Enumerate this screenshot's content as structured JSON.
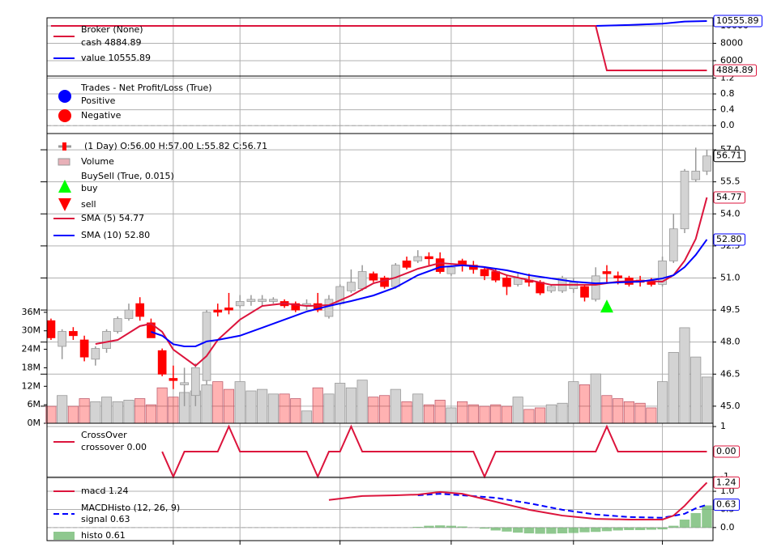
{
  "chart_data": [
    {
      "type": "line",
      "title": "Broker (None)",
      "xlim": [
        -0.36,
        59.55
      ],
      "ylim": [
        4230,
        10930
      ],
      "yticks": [
        6000,
        8000,
        10000
      ],
      "grid": true,
      "series": [
        {
          "name": "cash 4884.89",
          "color": "#dc143c",
          "x": [
            0,
            49,
            50,
            59
          ],
          "values": [
            10000,
            10000,
            4884.89,
            4884.89
          ],
          "tag_label": "4884.89"
        },
        {
          "name": "value 10555.89",
          "color": "#0000ff",
          "x": [
            0,
            49,
            52,
            55,
            57,
            59
          ],
          "values": [
            10000,
            10000,
            10100,
            10250,
            10500,
            10555.89
          ],
          "tag_label": "10555.89"
        }
      ]
    },
    {
      "type": "scatter",
      "title": "Trades - Net Profit/Loss (True)",
      "xlim": [
        -0.36,
        59.55
      ],
      "ylim": [
        -0.2,
        1.25
      ],
      "yticks": [
        {
          "value": 0,
          "label": "0.0"
        },
        0.4,
        0.8,
        1.2
      ],
      "grid": true,
      "zero_line": true,
      "series": [
        {
          "name": "Positive",
          "color": "#0000ff",
          "x": [],
          "values": []
        },
        {
          "name": "Negative",
          "color": "#ff0000",
          "x": [],
          "values": []
        }
      ]
    },
    {
      "type": "candlestick",
      "title": "(1 Day) O:56.00 H:57.00 L:55.82 C:56.71",
      "xlim": [
        -0.36,
        59.55
      ],
      "ylim": [
        44.2,
        57.76
      ],
      "yticks": [
        {
          "value": 45,
          "label": "45.0"
        },
        46.5,
        {
          "value": 48,
          "label": "48.0"
        },
        49.5,
        {
          "value": 51,
          "label": "51.0"
        },
        52.5,
        {
          "value": 54,
          "label": "54.0"
        },
        55.5,
        {
          "value": 57,
          "label": "57.0"
        }
      ],
      "grid": true,
      "up_color": "#d3d3d3",
      "down_color": "#ff0000",
      "tag_label": "56.71",
      "xgrid": [
        11,
        17,
        26,
        36,
        47,
        55
      ],
      "open": [
        49.0,
        47.8,
        48.5,
        48.1,
        47.2,
        47.7,
        48.5,
        49.1,
        49.8,
        48.9,
        47.6,
        46.3,
        46.0,
        45.5,
        46.2,
        49.5,
        49.6,
        49.7,
        49.9,
        49.9,
        49.9,
        49.9,
        49.8,
        49.7,
        49.8,
        49.2,
        49.8,
        50.4,
        50.5,
        51.2,
        51.0,
        50.6,
        51.8,
        51.8,
        52.0,
        51.9,
        51.2,
        51.8,
        51.6,
        51.4,
        51.3,
        51.0,
        50.7,
        50.9,
        50.8,
        50.4,
        50.4,
        50.5,
        50.6,
        50.0,
        51.3,
        51.1,
        51.0,
        50.9,
        50.8,
        50.7,
        51.8,
        53.3,
        55.6,
        56.0
      ],
      "high": [
        49.1,
        48.6,
        48.7,
        48.3,
        47.8,
        48.6,
        49.2,
        49.8,
        50.1,
        49.1,
        47.7,
        46.9,
        46.8,
        47.0,
        49.5,
        49.8,
        50.3,
        50.2,
        50.2,
        50.2,
        50.1,
        50.0,
        49.9,
        50.0,
        50.3,
        50.2,
        50.7,
        51.4,
        51.6,
        51.3,
        51.1,
        51.7,
        52.0,
        52.3,
        52.2,
        52.2,
        51.6,
        51.9,
        51.8,
        51.5,
        51.4,
        51.1,
        51.2,
        51.2,
        50.9,
        50.7,
        51.1,
        51.0,
        50.7,
        51.5,
        51.6,
        51.3,
        51.1,
        51.1,
        51.0,
        52.0,
        54.0,
        56.1,
        57.1,
        57.0
      ],
      "low": [
        48.1,
        47.2,
        48.1,
        47.1,
        46.9,
        47.5,
        48.4,
        49.0,
        49.0,
        48.2,
        46.4,
        45.8,
        45.0,
        45.0,
        46.0,
        49.2,
        49.3,
        49.6,
        49.7,
        49.7,
        49.8,
        49.6,
        49.4,
        49.5,
        49.4,
        49.1,
        49.7,
        50.3,
        50.4,
        50.8,
        50.5,
        50.5,
        51.4,
        51.7,
        51.6,
        51.2,
        51.1,
        51.3,
        51.2,
        50.9,
        50.8,
        50.2,
        50.6,
        50.6,
        50.2,
        50.3,
        50.3,
        50.3,
        49.9,
        49.9,
        50.8,
        50.7,
        50.6,
        50.6,
        50.6,
        50.6,
        51.7,
        53.1,
        55.5,
        55.82
      ],
      "close": [
        48.2,
        48.5,
        48.3,
        47.3,
        47.7,
        48.5,
        49.1,
        49.5,
        49.2,
        48.2,
        46.5,
        46.2,
        46.1,
        46.8,
        49.4,
        49.4,
        49.5,
        49.9,
        50.0,
        50.0,
        50.0,
        49.7,
        49.5,
        49.8,
        49.5,
        50.0,
        50.6,
        50.8,
        51.3,
        50.9,
        50.6,
        51.6,
        51.5,
        52.0,
        51.9,
        51.3,
        51.5,
        51.6,
        51.4,
        51.1,
        50.9,
        50.6,
        51.0,
        50.8,
        50.3,
        50.6,
        51.0,
        50.8,
        50.1,
        51.1,
        51.2,
        51.0,
        50.7,
        50.8,
        50.7,
        51.8,
        53.3,
        56.0,
        56.0,
        56.71
      ],
      "volume": {
        "name": "Volume",
        "ylim": [
          0,
          94
        ],
        "yticks": [
          {
            "value": 0,
            "label": "0M"
          },
          {
            "value": 6,
            "label": "6M"
          },
          {
            "value": 12,
            "label": "12M"
          },
          {
            "value": 18,
            "label": "18M"
          },
          {
            "value": 24,
            "label": "24M"
          },
          {
            "value": 30,
            "label": "30M"
          },
          {
            "value": 36,
            "label": "36M"
          }
        ],
        "values": [
          5.5,
          9,
          5.5,
          8,
          7,
          8.5,
          7,
          7.5,
          8,
          6,
          11.5,
          8.5,
          10,
          10.5,
          12.5,
          13.5,
          11,
          13.5,
          10.5,
          11,
          9.5,
          9.5,
          8,
          4,
          11.5,
          9.5,
          13,
          11.5,
          14,
          8.5,
          9,
          11,
          7,
          9.5,
          6,
          7.5,
          5,
          7,
          6,
          5.5,
          6,
          5.5,
          8.5,
          4.5,
          5,
          6,
          6.5,
          13.5,
          12.5,
          16,
          9,
          8,
          7,
          6.5,
          5,
          13.5,
          23,
          31,
          21.5,
          15
        ]
      },
      "buysell": {
        "title": "BuySell (True, 0.015)",
        "buy": {
          "name": "buy",
          "color": "#00ff00",
          "x": [
            50
          ],
          "values": [
            49.65
          ]
        },
        "sell": {
          "name": "sell",
          "color": "#ff0000",
          "x": [],
          "values": []
        }
      },
      "series": [
        {
          "name": "SMA (5) 54.77",
          "color": "#dc143c",
          "tag_label": "54.77",
          "x": [
            4,
            6,
            8,
            9,
            10,
            11,
            13,
            14,
            15,
            17,
            19,
            21,
            23,
            25,
            27,
            29,
            31,
            33,
            35,
            37,
            39,
            41,
            43,
            45,
            47,
            49,
            51,
            53,
            55,
            56,
            57,
            58,
            59
          ],
          "values": [
            47.91,
            48.1,
            48.75,
            48.86,
            48.48,
            47.65,
            46.89,
            47.35,
            48.1,
            49.05,
            49.69,
            49.81,
            49.69,
            49.73,
            50.18,
            50.75,
            51.02,
            51.43,
            51.7,
            51.62,
            51.51,
            51.13,
            50.9,
            50.68,
            50.68,
            50.68,
            50.83,
            50.87,
            50.83,
            51.13,
            51.81,
            52.83,
            54.77
          ]
        },
        {
          "name": "SMA (10) 52.80",
          "color": "#0000ff",
          "tag_label": "52.80",
          "x": [
            9,
            10,
            11,
            12,
            13,
            14,
            15,
            17,
            19,
            21,
            23,
            25,
            27,
            29,
            31,
            33,
            35,
            37,
            39,
            41,
            43,
            45,
            47,
            49,
            51,
            53,
            55,
            56,
            57,
            58,
            59
          ],
          "values": [
            48.48,
            48.3,
            47.9,
            47.8,
            47.8,
            48.03,
            48.1,
            48.3,
            48.67,
            49.05,
            49.43,
            49.69,
            49.92,
            50.18,
            50.56,
            51.13,
            51.51,
            51.59,
            51.51,
            51.36,
            51.13,
            50.98,
            50.83,
            50.75,
            50.79,
            50.83,
            50.98,
            51.13,
            51.51,
            52.08,
            52.8
          ]
        }
      ]
    },
    {
      "type": "line",
      "title": "CrossOver",
      "xlim": [
        -0.36,
        59.55
      ],
      "ylim": [
        -1.03,
        1.13
      ],
      "yticks": [
        -1,
        1
      ],
      "grid": true,
      "series": [
        {
          "name": "crossover 0.00",
          "color": "#dc143c",
          "tag_label": "0.00",
          "x": [
            10,
            11,
            12,
            15,
            16,
            17,
            23,
            24,
            25,
            26,
            27,
            28,
            38,
            39,
            40,
            49,
            50,
            51,
            59
          ],
          "values": [
            0,
            -1,
            0,
            0,
            1,
            0,
            0,
            -1,
            0,
            0,
            1,
            0,
            0,
            -1,
            0,
            0,
            1,
            0,
            0
          ]
        }
      ]
    },
    {
      "type": "line",
      "title": "MACDHisto (12, 26, 9)",
      "xlim": [
        -0.36,
        59.55
      ],
      "ylim": [
        -0.36,
        1.38
      ],
      "yticks": [
        {
          "value": 0,
          "label": "0.0"
        },
        0.5,
        {
          "value": 1,
          "label": "1.0"
        }
      ],
      "grid": true,
      "zero_line": true,
      "series": [
        {
          "name": "macd 1.24",
          "color": "#dc143c",
          "style": "solid",
          "tag_label": "1.24",
          "x": [
            25,
            28,
            31,
            33,
            35,
            37,
            40,
            43,
            46,
            49,
            52,
            55,
            56,
            57,
            58,
            59
          ],
          "values": [
            0.76,
            0.87,
            0.89,
            0.91,
            0.98,
            0.93,
            0.71,
            0.49,
            0.33,
            0.24,
            0.22,
            0.22,
            0.33,
            0.6,
            0.93,
            1.24
          ]
        },
        {
          "name": "signal 0.63",
          "color": "#0000ff",
          "style": "dashed",
          "tag_label": "0.63",
          "x": [
            33,
            35,
            37,
            40,
            43,
            46,
            49,
            52,
            55,
            57,
            58,
            59
          ],
          "values": [
            0.89,
            0.93,
            0.89,
            0.82,
            0.67,
            0.49,
            0.36,
            0.29,
            0.27,
            0.38,
            0.53,
            0.63
          ]
        },
        {
          "name": "histo 0.61",
          "color": "#6ab56a",
          "style": "bar",
          "x": [
            33,
            34,
            35,
            36,
            37,
            38,
            39,
            40,
            41,
            42,
            43,
            44,
            45,
            46,
            47,
            48,
            49,
            50,
            51,
            52,
            53,
            54,
            55,
            56,
            57,
            58,
            59
          ],
          "values": [
            0.02,
            0.05,
            0.06,
            0.05,
            0.03,
            0,
            -0.03,
            -0.08,
            -0.11,
            -0.14,
            -0.16,
            -0.17,
            -0.17,
            -0.16,
            -0.15,
            -0.13,
            -0.12,
            -0.1,
            -0.08,
            -0.07,
            -0.07,
            -0.06,
            -0.05,
            0.05,
            0.22,
            0.4,
            0.61
          ]
        }
      ]
    }
  ]
}
